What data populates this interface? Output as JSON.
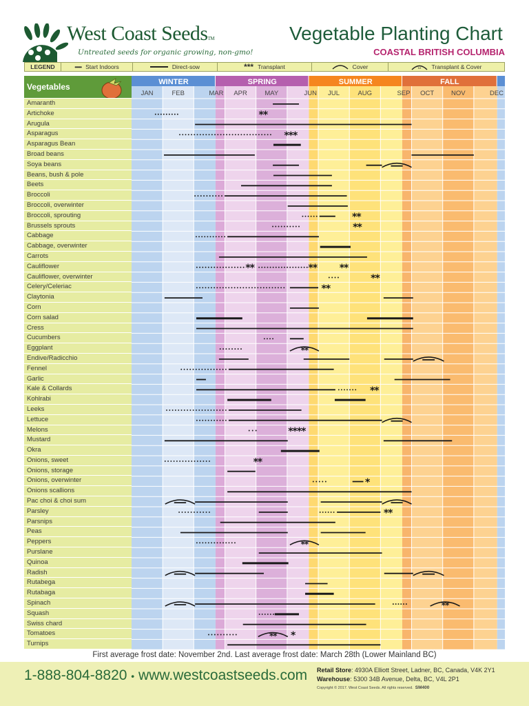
{
  "brand": {
    "name": "West Coast Seeds",
    "tm": "TM",
    "tagline": "Untreated seeds for organic growing, non-gmo!"
  },
  "header": {
    "title": "Vegetable Planting Chart",
    "subtitle": "COASTAL BRITISH COLUMBIA"
  },
  "legend": {
    "title": "LEGEND",
    "items": [
      "Start Indoors",
      "Direct-sow",
      "Transplant",
      "Cover",
      "Transplant & Cover"
    ]
  },
  "colors": {
    "winter": "#5b8fd4",
    "spring": "#b55fae",
    "summer": "#f5861f",
    "fall": "#e0703a",
    "label_bg": "#e6eca2",
    "header_green": "#5f9b3a"
  },
  "chart_data": {
    "type": "table",
    "title": "Vegetable Planting Chart",
    "row_header": "Vegetables",
    "seasons": [
      {
        "name": "WINTER",
        "from": 0,
        "to": 2.7
      },
      {
        "name": "SPRING",
        "from": 2.7,
        "to": 5.7
      },
      {
        "name": "SUMMER",
        "from": 5.7,
        "to": 8.7
      },
      {
        "name": "FALL",
        "from": 8.7,
        "to": 11.75
      }
    ],
    "months": [
      "JAN",
      "FEB",
      "MAR",
      "APR",
      "MAY",
      "JUN",
      "JUL",
      "AUG",
      "SEP",
      "OCT",
      "NOV",
      "DEC"
    ],
    "units": "months from Jan 1",
    "rows": [
      {
        "name": "Amaranth",
        "marks": [
          {
            "t": "sow",
            "f": 4.54,
            "e": 5.38
          }
        ]
      },
      {
        "name": "Artichoke",
        "marks": [
          {
            "t": "indoor",
            "f": 0.77,
            "e": 1.48
          },
          {
            "t": "tp",
            "f": 4.0,
            "e": 4.45,
            "n": 2
          }
        ]
      },
      {
        "name": "Arugula",
        "marks": [
          {
            "t": "sow",
            "f": 2.04,
            "e": 9.0
          }
        ]
      },
      {
        "name": "Asparagus",
        "marks": [
          {
            "t": "indoor",
            "f": 1.55,
            "e": 4.47
          },
          {
            "t": "tp",
            "f": 4.78,
            "e": 5.44,
            "n": 3
          }
        ]
      },
      {
        "name": "Asparagus Bean",
        "marks": [
          {
            "t": "sow",
            "f": 4.56,
            "e": 5.44,
            "bold": true
          }
        ]
      },
      {
        "name": "Broad beans",
        "marks": [
          {
            "t": "sow",
            "f": 1.04,
            "e": 3.96
          },
          {
            "t": "sow",
            "f": 9.0,
            "e": 11.0
          }
        ]
      },
      {
        "name": "Soya beans",
        "marks": [
          {
            "t": "sow",
            "f": 4.54,
            "e": 5.38
          },
          {
            "t": "sow",
            "f": 7.54,
            "e": 8.05
          },
          {
            "t": "cover",
            "f": 8.05,
            "e": 9.0
          }
        ]
      },
      {
        "name": "Beans, bush & pole",
        "marks": [
          {
            "t": "sow",
            "f": 4.56,
            "e": 6.44
          }
        ]
      },
      {
        "name": "Beets",
        "marks": [
          {
            "t": "sow",
            "f": 3.52,
            "e": 6.44
          }
        ]
      },
      {
        "name": "Broccoli",
        "marks": [
          {
            "t": "indoor",
            "f": 2.04,
            "e": 2.9
          },
          {
            "t": "sow",
            "f": 2.99,
            "e": 6.92
          }
        ]
      },
      {
        "name": "Broccoli, overwinter",
        "marks": [
          {
            "t": "sow",
            "f": 5.02,
            "e": 6.95
          }
        ]
      },
      {
        "name": "Broccoli, sprouting",
        "marks": [
          {
            "t": "indoor",
            "f": 5.5,
            "e": 5.95
          },
          {
            "t": "sow",
            "f": 6.04,
            "e": 6.55
          },
          {
            "t": "tp",
            "f": 7.0,
            "e": 7.45,
            "n": 2
          }
        ]
      },
      {
        "name": "Brussels sprouts",
        "marks": [
          {
            "t": "indoor",
            "f": 4.54,
            "e": 5.38
          },
          {
            "t": "tp",
            "f": 7.05,
            "e": 7.45,
            "n": 2
          }
        ]
      },
      {
        "name": "Cabbage",
        "marks": [
          {
            "t": "indoor",
            "f": 2.08,
            "e": 2.99
          },
          {
            "t": "sow",
            "f": 3.08,
            "e": 6.02
          }
        ]
      },
      {
        "name": "Cabbage, overwinter",
        "marks": [
          {
            "t": "sow",
            "f": 6.06,
            "e": 7.04,
            "bold": true
          }
        ]
      },
      {
        "name": "Carrots",
        "marks": [
          {
            "t": "sow",
            "f": 2.81,
            "e": 7.57
          }
        ]
      },
      {
        "name": "Cauliflower",
        "marks": [
          {
            "t": "indoor",
            "f": 2.1,
            "e": 3.6
          },
          {
            "t": "tp",
            "f": 3.6,
            "e": 4.0,
            "n": 2
          },
          {
            "t": "indoor",
            "f": 4.1,
            "e": 5.64
          },
          {
            "t": "tp",
            "f": 5.64,
            "e": 6.0,
            "n": 2
          },
          {
            "t": "tp",
            "f": 6.64,
            "e": 7.0,
            "n": 2
          }
        ]
      },
      {
        "name": "Cauliflower, overwinter",
        "marks": [
          {
            "t": "indoor",
            "f": 6.35,
            "e": 6.64
          },
          {
            "t": "tp",
            "f": 7.6,
            "e": 8.05,
            "n": 2
          }
        ]
      },
      {
        "name": "Celery/Celeriac",
        "marks": [
          {
            "t": "indoor",
            "f": 2.1,
            "e": 4.9
          },
          {
            "t": "sow",
            "f": 5.09,
            "e": 6.0
          },
          {
            "t": "tp",
            "f": 6.02,
            "e": 6.46,
            "n": 2
          }
        ]
      },
      {
        "name": "Claytonia",
        "marks": [
          {
            "t": "sow",
            "f": 1.06,
            "e": 2.28
          },
          {
            "t": "sow",
            "f": 8.1,
            "e": 9.05
          }
        ]
      },
      {
        "name": "Corn",
        "marks": [
          {
            "t": "sow",
            "f": 5.09,
            "e": 6.02
          }
        ]
      },
      {
        "name": "Corn salad",
        "marks": [
          {
            "t": "sow",
            "f": 2.08,
            "e": 3.56,
            "bold": true
          },
          {
            "t": "sow",
            "f": 7.57,
            "e": 9.05,
            "bold": true
          }
        ]
      },
      {
        "name": "Cress",
        "marks": [
          {
            "t": "sow",
            "f": 2.08,
            "e": 9.05
          }
        ]
      },
      {
        "name": "Cucumbers",
        "marks": [
          {
            "t": "indoor",
            "f": 4.27,
            "e": 4.54
          },
          {
            "t": "sow",
            "f": 5.09,
            "e": 5.53
          }
        ]
      },
      {
        "name": "Eggplant",
        "marks": [
          {
            "t": "indoor",
            "f": 2.85,
            "e": 3.52
          },
          {
            "t": "tc",
            "f": 5.09,
            "e": 6.02
          }
        ]
      },
      {
        "name": "Endive/Radicchio",
        "marks": [
          {
            "t": "sow",
            "f": 2.81,
            "e": 3.76
          },
          {
            "t": "sow",
            "f": 5.53,
            "e": 7.0
          },
          {
            "t": "sow",
            "f": 8.12,
            "e": 9.05
          },
          {
            "t": "cover",
            "f": 9.05,
            "e": 10.04
          }
        ]
      },
      {
        "name": "Fennel",
        "marks": [
          {
            "t": "indoor",
            "f": 1.6,
            "e": 3.03
          },
          {
            "t": "sow",
            "f": 3.12,
            "e": 6.5
          }
        ]
      },
      {
        "name": "Garlic",
        "marks": [
          {
            "t": "sow",
            "f": 2.08,
            "e": 2.39
          },
          {
            "t": "sow",
            "f": 8.45,
            "e": 10.24
          }
        ]
      },
      {
        "name": "Kale & Collards",
        "marks": [
          {
            "t": "sow",
            "f": 2.08,
            "e": 6.55
          },
          {
            "t": "indoor",
            "f": 6.66,
            "e": 7.2
          },
          {
            "t": "tp",
            "f": 7.6,
            "e": 8.0,
            "n": 2
          }
        ]
      },
      {
        "name": "Kohlrabi",
        "marks": [
          {
            "t": "sow",
            "f": 3.08,
            "e": 4.49,
            "bold": true
          },
          {
            "t": "sow",
            "f": 6.53,
            "e": 7.52,
            "bold": true
          }
        ]
      },
      {
        "name": "Leeks",
        "marks": [
          {
            "t": "indoor",
            "f": 1.13,
            "e": 3.03
          },
          {
            "t": "sow",
            "f": 3.12,
            "e": 5.46
          }
        ]
      },
      {
        "name": "Lettuce",
        "marks": [
          {
            "t": "indoor",
            "f": 2.1,
            "e": 3.03
          },
          {
            "t": "sow",
            "f": 3.12,
            "e": 8.05
          },
          {
            "t": "cover",
            "f": 8.05,
            "e": 9.0
          }
        ]
      },
      {
        "name": "Melons",
        "marks": [
          {
            "t": "indoor",
            "f": 3.78,
            "e": 4.0
          },
          {
            "t": "tp",
            "f": 4.85,
            "e": 5.77,
            "n": 4
          }
        ]
      },
      {
        "name": "Mustard",
        "marks": [
          {
            "t": "sow",
            "f": 1.06,
            "e": 5.02
          },
          {
            "t": "sow",
            "f": 8.1,
            "e": 10.3
          }
        ]
      },
      {
        "name": "Okra",
        "marks": [
          {
            "t": "sow",
            "f": 4.8,
            "e": 6.04,
            "bold": true
          }
        ]
      },
      {
        "name": "Onions, sweet",
        "marks": [
          {
            "t": "indoor",
            "f": 1.08,
            "e": 2.5
          },
          {
            "t": "tp",
            "f": 3.83,
            "e": 4.27,
            "n": 2
          }
        ]
      },
      {
        "name": "Onions, storage",
        "marks": [
          {
            "t": "sow",
            "f": 3.08,
            "e": 3.98
          }
        ]
      },
      {
        "name": "Onions, overwinter",
        "marks": [
          {
            "t": "indoor",
            "f": 5.84,
            "e": 6.24
          },
          {
            "t": "sow",
            "f": 7.1,
            "e": 7.45
          },
          {
            "t": "tp",
            "f": 7.45,
            "e": 7.7,
            "n": 1
          }
        ]
      },
      {
        "name": "Onions scallions",
        "marks": [
          {
            "t": "sow",
            "f": 3.08,
            "e": 9.0
          }
        ]
      },
      {
        "name": "Pac choi & choi sum",
        "marks": [
          {
            "t": "cover",
            "f": 1.08,
            "e": 2.04
          },
          {
            "t": "sow",
            "f": 2.04,
            "e": 5.02
          },
          {
            "t": "sow",
            "f": 6.08,
            "e": 8.05
          },
          {
            "t": "cover",
            "f": 8.05,
            "e": 9.0
          }
        ]
      },
      {
        "name": "Parsley",
        "marks": [
          {
            "t": "indoor",
            "f": 1.53,
            "e": 2.5
          },
          {
            "t": "sow",
            "f": 4.09,
            "e": 5.02
          },
          {
            "t": "indoor",
            "f": 6.06,
            "e": 6.5
          },
          {
            "t": "sow",
            "f": 6.6,
            "e": 8.0
          },
          {
            "t": "tp",
            "f": 8.05,
            "e": 8.43,
            "n": 2
          }
        ]
      },
      {
        "name": "Parsnips",
        "marks": [
          {
            "t": "sow",
            "f": 2.85,
            "e": 6.55
          }
        ]
      },
      {
        "name": "Peas",
        "marks": [
          {
            "t": "sow",
            "f": 1.57,
            "e": 5.02
          },
          {
            "t": "sow",
            "f": 6.08,
            "e": 7.52
          }
        ]
      },
      {
        "name": "Peppers",
        "marks": [
          {
            "t": "indoor",
            "f": 2.1,
            "e": 3.32
          },
          {
            "t": "tc",
            "f": 5.09,
            "e": 6.02
          }
        ]
      },
      {
        "name": "Purslane",
        "marks": [
          {
            "t": "sow",
            "f": 4.09,
            "e": 8.05
          }
        ]
      },
      {
        "name": "Quinoa",
        "marks": [
          {
            "t": "sow",
            "f": 3.56,
            "e": 5.04,
            "bold": true
          }
        ]
      },
      {
        "name": "Radish",
        "marks": [
          {
            "t": "cover",
            "f": 1.08,
            "e": 2.04
          },
          {
            "t": "sow",
            "f": 2.04,
            "e": 4.25
          },
          {
            "t": "sow",
            "f": 8.12,
            "e": 9.05
          },
          {
            "t": "cover",
            "f": 9.05,
            "e": 10.04
          }
        ]
      },
      {
        "name": "Rutabega",
        "marks": [
          {
            "t": "sow",
            "f": 5.58,
            "e": 6.3
          }
        ]
      },
      {
        "name": "Rutabaga",
        "marks": [
          {
            "t": "sow",
            "f": 5.58,
            "e": 6.5,
            "bold": true
          }
        ]
      },
      {
        "name": "Spinach",
        "marks": [
          {
            "t": "cover",
            "f": 1.08,
            "e": 2.04
          },
          {
            "t": "sow",
            "f": 2.04,
            "e": 7.83
          },
          {
            "t": "indoor",
            "f": 8.41,
            "e": 8.83
          },
          {
            "t": "tc",
            "f": 9.6,
            "e": 10.55
          }
        ]
      },
      {
        "name": "Squash",
        "marks": [
          {
            "t": "indoor",
            "f": 4.11,
            "e": 4.56
          },
          {
            "t": "sow",
            "f": 4.6,
            "e": 5.38,
            "bold": true
          }
        ]
      },
      {
        "name": "Swiss chard",
        "marks": [
          {
            "t": "sow",
            "f": 3.58,
            "e": 7.54
          }
        ]
      },
      {
        "name": "Tomatoes",
        "marks": [
          {
            "t": "indoor",
            "f": 2.48,
            "e": 3.36
          },
          {
            "t": "tc",
            "f": 4.07,
            "e": 5.02
          },
          {
            "t": "tp",
            "f": 5.04,
            "e": 5.33,
            "n": 1
          }
        ]
      },
      {
        "name": "Turnips",
        "marks": [
          {
            "t": "sow",
            "f": 3.08,
            "e": 8.0
          }
        ]
      }
    ]
  },
  "footer": {
    "frost": "First average frost date: November 2nd. Last average frost date: March 28th (Lower Mainland BC)",
    "phone": "1-888-804-8820",
    "sep": "•",
    "web": "www.westcoastseeds.com",
    "store_label": "Retail Store",
    "store": ": 4930A Elliott Street, Ladner, BC, Canada, V4K 2Y1",
    "warehouse_label": "Warehouse",
    "warehouse": ": 5300 34B Avenue, Delta, BC, V4L 2P1",
    "copyright": "Copyright © 2017. West Coast Seeds. All rights reserved.",
    "code": "SM400"
  }
}
